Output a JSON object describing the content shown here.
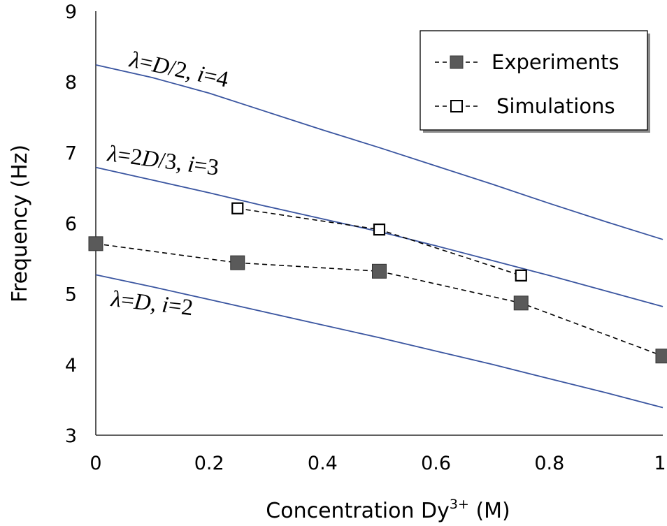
{
  "chart_data": {
    "type": "line",
    "xlabel": "Concentration Dy",
    "xlabel_sup": "3+",
    "xlabel_unit": " (M)",
    "ylabel": "Frequency (Hz)",
    "xlim": [
      0,
      1
    ],
    "ylim": [
      3,
      9
    ],
    "x_ticks": [
      0,
      0.2,
      0.4,
      0.6,
      0.8,
      1
    ],
    "x_tick_labels": [
      "0",
      "0.2",
      "0.4",
      "0.6",
      "0.8",
      "1"
    ],
    "y_ticks": [
      3,
      4,
      5,
      6,
      7,
      8,
      9
    ],
    "y_tick_labels": [
      "3",
      "4",
      "5",
      "6",
      "7",
      "8",
      "9"
    ],
    "grid": false,
    "legend_position": "top-right",
    "curves": [
      {
        "label": "λ=D/2, i=4",
        "color": "#3a55a0",
        "x": [
          0,
          0.1,
          0.2,
          0.3,
          0.4,
          0.5,
          0.6,
          0.7,
          0.8,
          0.9,
          1.0
        ],
        "y": [
          8.24,
          8.06,
          7.84,
          7.58,
          7.32,
          7.07,
          6.81,
          6.55,
          6.28,
          6.02,
          5.77
        ]
      },
      {
        "label": "λ=2D/3, i=3",
        "color": "#3a55a0",
        "x": [
          0,
          0.1,
          0.2,
          0.3,
          0.4,
          0.5,
          0.6,
          0.7,
          0.8,
          0.9,
          1.0
        ],
        "y": [
          6.79,
          6.61,
          6.43,
          6.24,
          6.06,
          5.88,
          5.68,
          5.47,
          5.26,
          5.04,
          4.82
        ]
      },
      {
        "label": "λ=D, i=2",
        "color": "#3a55a0",
        "x": [
          0,
          0.1,
          0.2,
          0.3,
          0.4,
          0.5,
          0.6,
          0.7,
          0.8,
          0.9,
          1.0
        ],
        "y": [
          5.27,
          5.1,
          4.92,
          4.74,
          4.56,
          4.38,
          4.19,
          4.0,
          3.8,
          3.6,
          3.39
        ]
      }
    ],
    "series": [
      {
        "name": "Experiments",
        "marker": "filled-square",
        "color": "#5a5a5a",
        "x": [
          0,
          0.25,
          0.5,
          0.75,
          1.0
        ],
        "y": [
          5.71,
          5.44,
          5.32,
          4.87,
          4.12
        ]
      },
      {
        "name": "Simulations",
        "marker": "open-square",
        "color": "#000000",
        "x": [
          0.25,
          0.5,
          0.75
        ],
        "y": [
          6.21,
          5.91,
          5.26
        ]
      }
    ]
  }
}
